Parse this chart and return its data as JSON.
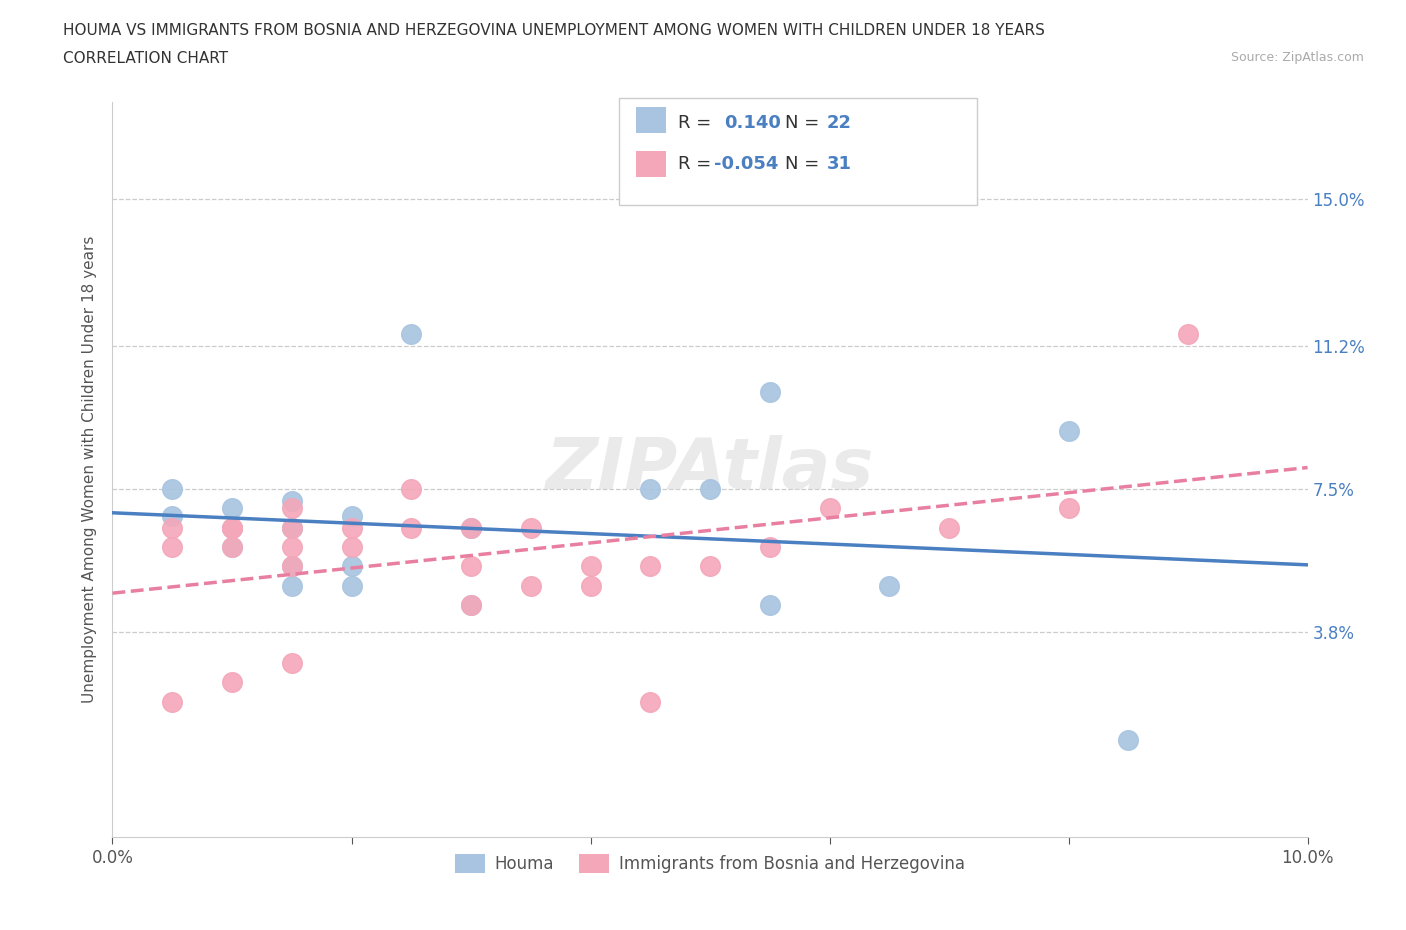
{
  "title_line1": "HOUMA VS IMMIGRANTS FROM BOSNIA AND HERZEGOVINA UNEMPLOYMENT AMONG WOMEN WITH CHILDREN UNDER 18 YEARS",
  "title_line2": "CORRELATION CHART",
  "source": "Source: ZipAtlas.com",
  "ylabel": "Unemployment Among Women with Children Under 18 years",
  "xlim": [
    0.0,
    0.1
  ],
  "ylim": [
    -0.015,
    0.175
  ],
  "right_yticks": [
    0.038,
    0.075,
    0.112,
    0.15
  ],
  "right_yticklabels": [
    "3.8%",
    "7.5%",
    "11.2%",
    "15.0%"
  ],
  "xticks": [
    0.0,
    0.02,
    0.04,
    0.06,
    0.08,
    0.1
  ],
  "xticklabels": [
    "0.0%",
    "",
    "",
    "",
    "",
    "10.0%"
  ],
  "houma_color": "#a8c4e0",
  "bosnia_color": "#f4a7b9",
  "trend_blue": "#4a7fc1",
  "trend_pink": "#e87fa0",
  "houma_x": [
    0.005,
    0.005,
    0.01,
    0.01,
    0.01,
    0.015,
    0.015,
    0.015,
    0.015,
    0.02,
    0.02,
    0.02,
    0.025,
    0.03,
    0.03,
    0.045,
    0.05,
    0.055,
    0.055,
    0.065,
    0.08,
    0.085
  ],
  "houma_y": [
    0.075,
    0.068,
    0.07,
    0.065,
    0.06,
    0.072,
    0.065,
    0.055,
    0.05,
    0.068,
    0.055,
    0.05,
    0.115,
    0.065,
    0.045,
    0.075,
    0.075,
    0.1,
    0.045,
    0.05,
    0.09,
    0.01
  ],
  "bosnia_x": [
    0.005,
    0.005,
    0.005,
    0.01,
    0.01,
    0.01,
    0.01,
    0.015,
    0.015,
    0.015,
    0.015,
    0.015,
    0.02,
    0.02,
    0.025,
    0.025,
    0.03,
    0.03,
    0.03,
    0.035,
    0.035,
    0.04,
    0.04,
    0.045,
    0.045,
    0.05,
    0.055,
    0.06,
    0.07,
    0.08,
    0.09
  ],
  "bosnia_y": [
    0.065,
    0.06,
    0.02,
    0.065,
    0.065,
    0.06,
    0.025,
    0.07,
    0.065,
    0.06,
    0.055,
    0.03,
    0.065,
    0.06,
    0.075,
    0.065,
    0.065,
    0.055,
    0.045,
    0.065,
    0.05,
    0.055,
    0.05,
    0.055,
    0.02,
    0.055,
    0.06,
    0.07,
    0.065,
    0.07,
    0.115
  ],
  "houma_label": "Houma",
  "bosnia_label": "Immigrants from Bosnia and Herzegovina",
  "watermark": "ZIPAtlas",
  "background_color": "#ffffff",
  "grid_color": "#cccccc"
}
